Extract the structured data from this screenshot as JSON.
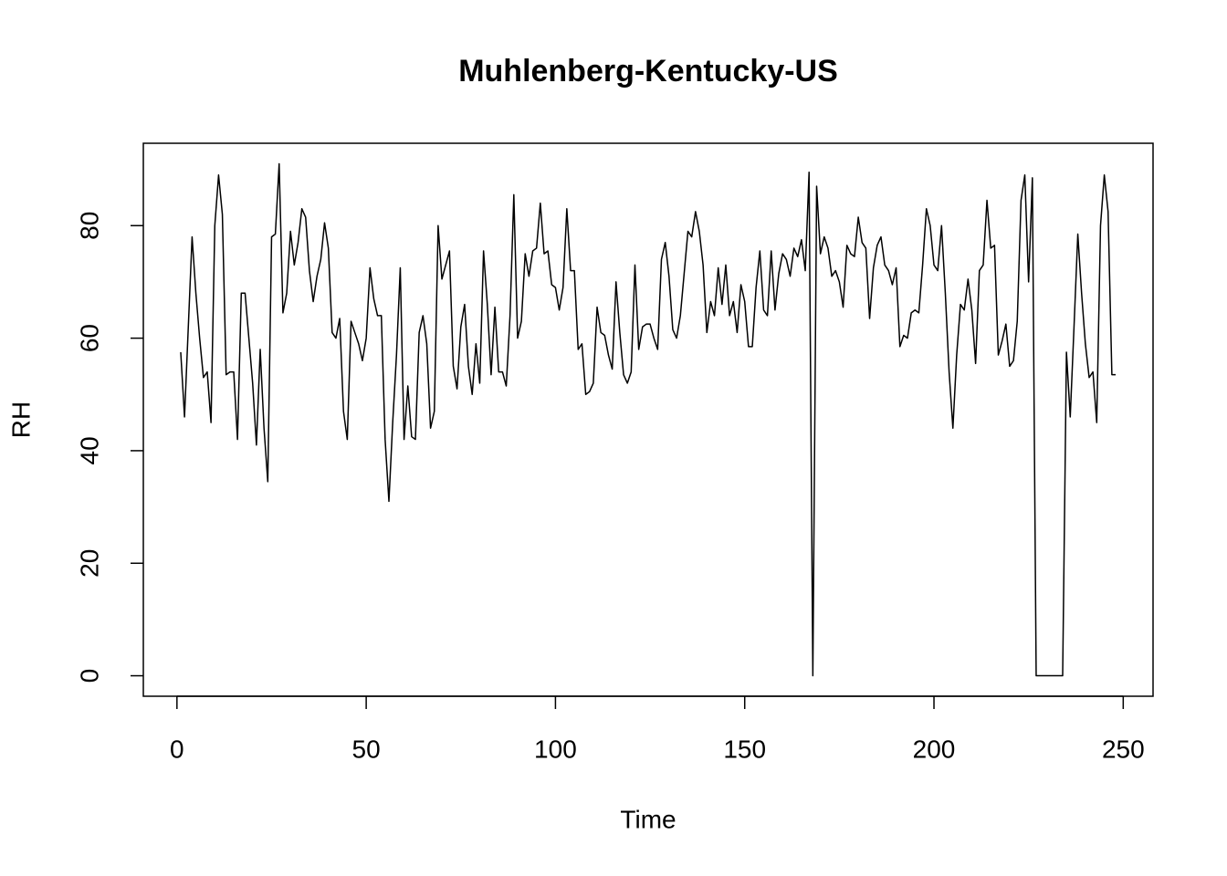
{
  "chart_data": {
    "type": "line",
    "title": "Muhlenberg-Kentucky-US",
    "xlabel": "Time",
    "ylabel": "RH",
    "x": [
      1,
      2,
      3,
      4,
      5,
      6,
      7,
      8,
      9,
      10,
      11,
      12,
      13,
      14,
      15,
      16,
      17,
      18,
      19,
      20,
      21,
      22,
      23,
      24,
      25,
      26,
      27,
      28,
      29,
      30,
      31,
      32,
      33,
      34,
      35,
      36,
      37,
      38,
      39,
      40,
      41,
      42,
      43,
      44,
      45,
      46,
      47,
      48,
      49,
      50,
      51,
      52,
      53,
      54,
      55,
      56,
      57,
      58,
      59,
      60,
      61,
      62,
      63,
      64,
      65,
      66,
      67,
      68,
      69,
      70,
      71,
      72,
      73,
      74,
      75,
      76,
      77,
      78,
      79,
      80,
      81,
      82,
      83,
      84,
      85,
      86,
      87,
      88,
      89,
      90,
      91,
      92,
      93,
      94,
      95,
      96,
      97,
      98,
      99,
      100,
      101,
      102,
      103,
      104,
      105,
      106,
      107,
      108,
      109,
      110,
      111,
      112,
      113,
      114,
      115,
      116,
      117,
      118,
      119,
      120,
      121,
      122,
      123,
      124,
      125,
      126,
      127,
      128,
      129,
      130,
      131,
      132,
      133,
      134,
      135,
      136,
      137,
      138,
      139,
      140,
      141,
      142,
      143,
      144,
      145,
      146,
      147,
      148,
      149,
      150,
      151,
      152,
      153,
      154,
      155,
      156,
      157,
      158,
      159,
      160,
      161,
      162,
      163,
      164,
      165,
      166,
      167,
      168,
      169,
      170,
      171,
      172,
      173,
      174,
      175,
      176,
      177,
      178,
      179,
      180,
      181,
      182,
      183,
      184,
      185,
      186,
      187,
      188,
      189,
      190,
      191,
      192,
      193,
      194,
      195,
      196,
      197,
      198,
      199,
      200,
      201,
      202,
      203,
      204,
      205,
      206,
      207,
      208,
      209,
      210,
      211,
      212,
      213,
      214,
      215,
      216,
      217,
      218,
      219,
      220,
      221,
      222,
      223,
      224,
      225,
      226,
      227,
      228,
      229,
      230,
      231,
      232,
      233,
      234,
      235,
      236,
      237,
      238,
      239,
      240,
      241,
      242,
      243,
      244,
      245,
      246,
      247,
      248
    ],
    "values": [
      57.5,
      46,
      62,
      78,
      68,
      60,
      53,
      54,
      45,
      80,
      89,
      82,
      53.5,
      54,
      54,
      42,
      68,
      68,
      60,
      52,
      41,
      58,
      44,
      34.5,
      78,
      78.5,
      91,
      64.5,
      68,
      79,
      73,
      77,
      83,
      81.5,
      72,
      66.5,
      71,
      74,
      80.5,
      76,
      61,
      60,
      63.5,
      47,
      42,
      63,
      61,
      59,
      56,
      60,
      72.5,
      67,
      64,
      64,
      42,
      31,
      45,
      57,
      72.5,
      42,
      51.5,
      42.5,
      42,
      61,
      64,
      59,
      44,
      47,
      80,
      70.5,
      73,
      75.5,
      55,
      51,
      62,
      66,
      55,
      50,
      59,
      52,
      75.5,
      66,
      53.5,
      65.5,
      54,
      54,
      51.5,
      64,
      85.5,
      60,
      63,
      75,
      71,
      75.5,
      76,
      84,
      75,
      75.5,
      69.5,
      69,
      65,
      69,
      83,
      72,
      72,
      58,
      59,
      50,
      50.5,
      52,
      65.5,
      61,
      60.5,
      57,
      54.5,
      70,
      61,
      53.5,
      52,
      54,
      73,
      58,
      62,
      62.5,
      62.5,
      60,
      58,
      74,
      77,
      71,
      61.5,
      60,
      64,
      71.5,
      79,
      78,
      82.5,
      79,
      73,
      61,
      66.5,
      64,
      72.5,
      66,
      73,
      64,
      66.5,
      61,
      69.5,
      66.5,
      58.5,
      58.5,
      69,
      75.5,
      65,
      64,
      75.5,
      65,
      71.5,
      75,
      74,
      71,
      76,
      74.5,
      77.5,
      72,
      89.5,
      0,
      87,
      75,
      78,
      76,
      71,
      72,
      70,
      65.5,
      76.5,
      75,
      74.5,
      81.5,
      77,
      76,
      63.5,
      72.5,
      76.5,
      78,
      73,
      72,
      69.5,
      72.5,
      58.5,
      60.5,
      60,
      64.5,
      65,
      64.5,
      73,
      83,
      80,
      73,
      72,
      80,
      68,
      54,
      44,
      57,
      66,
      65,
      70.5,
      65,
      55.5,
      72,
      73,
      84.5,
      76,
      76.5,
      57,
      59.5,
      62.5,
      55,
      56,
      63,
      84.5,
      89,
      70,
      88.5,
      0,
      0,
      0,
      0,
      0,
      0,
      0,
      0,
      57.5,
      46,
      62,
      78.5,
      68,
      59,
      53,
      54,
      45,
      80,
      89,
      82.5,
      53.5,
      53.5
    ],
    "color": "#000000",
    "xlim": [
      -8.88,
      257.88
    ],
    "xticks": [
      0,
      50,
      100,
      150,
      200,
      250
    ],
    "ylim": [
      -3.64,
      94.64
    ],
    "yticks": [
      0,
      20,
      40,
      60,
      80
    ],
    "grid": false
  }
}
